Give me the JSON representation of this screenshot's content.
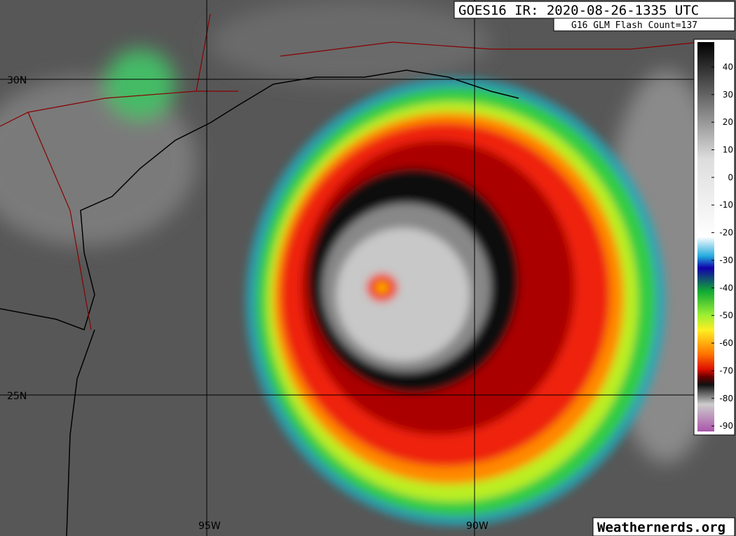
{
  "header": {
    "title": "GOES16 IR: 2020-08-26-1335 UTC",
    "flash_count": "G16 GLM Flash Count=137"
  },
  "grid": {
    "lat_labels": [
      "30N",
      "25N"
    ],
    "lon_labels": [
      "95W",
      "90W"
    ]
  },
  "colorbar": {
    "lim": [
      -92,
      49
    ],
    "ticks": [
      40,
      30,
      20,
      10,
      0,
      -10,
      -20,
      -30,
      -40,
      -50,
      -60,
      -70,
      -80,
      -90
    ]
  },
  "footer": {
    "credit": "Weathernerds.org"
  }
}
